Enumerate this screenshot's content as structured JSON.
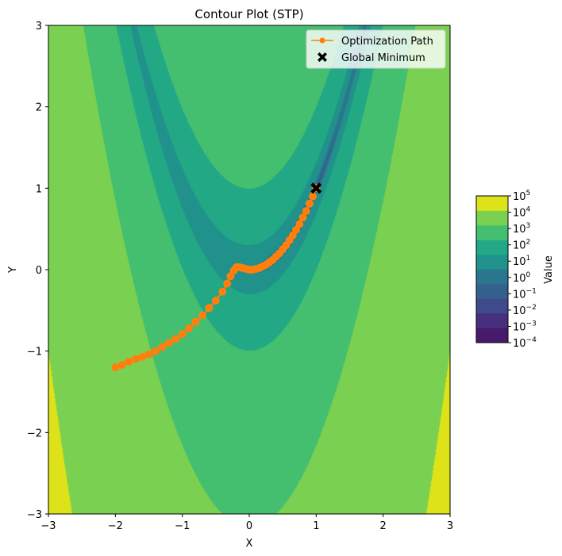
{
  "chart_data": {
    "type": "contour",
    "title": "Contour Plot (STP)",
    "xlabel": "X",
    "ylabel": "Y",
    "xlim": [
      -3,
      3
    ],
    "ylim": [
      -3,
      3
    ],
    "x_ticks": [
      -3,
      -2,
      -1,
      0,
      1,
      2,
      3
    ],
    "y_ticks": [
      -3,
      -2,
      -1,
      0,
      1,
      2,
      3
    ],
    "x_tick_labels": [
      "−3",
      "−2",
      "−1",
      "0",
      "1",
      "2",
      "3"
    ],
    "y_tick_labels": [
      "−3",
      "−2",
      "−1",
      "0",
      "1",
      "2",
      "3"
    ],
    "surface": "Rosenbrock",
    "scale": "log",
    "contour_levels": [
      0.0001,
      0.001,
      0.01,
      0.1,
      1,
      10,
      100,
      1000,
      10000,
      100000
    ],
    "level_colors": [
      "#481a6c",
      "#472f7d",
      "#3e4a89",
      "#35608d",
      "#2a768e",
      "#21918c",
      "#22a884",
      "#44bf70",
      "#7ad151",
      "#dde318"
    ],
    "colorbar": {
      "label": "Value",
      "tick_labels": [
        {
          "base": "10",
          "exp": "5"
        },
        {
          "base": "10",
          "exp": "4"
        },
        {
          "base": "10",
          "exp": "3"
        },
        {
          "base": "10",
          "exp": "2"
        },
        {
          "base": "10",
          "exp": "1"
        },
        {
          "base": "10",
          "exp": "0"
        },
        {
          "base": "10",
          "exp": "−1"
        },
        {
          "base": "10",
          "exp": "−2"
        },
        {
          "base": "10",
          "exp": "−3"
        },
        {
          "base": "10",
          "exp": "−4"
        }
      ]
    },
    "series": [
      {
        "name": "Optimization Path",
        "color": "#ff7f0e",
        "marker": "circle",
        "points": [
          [
            -2.0,
            -1.2
          ],
          [
            -1.9,
            -1.17
          ],
          [
            -1.8,
            -1.13
          ],
          [
            -1.7,
            -1.1
          ],
          [
            -1.6,
            -1.07
          ],
          [
            -1.5,
            -1.04
          ],
          [
            -1.4,
            -1.0
          ],
          [
            -1.3,
            -0.95
          ],
          [
            -1.2,
            -0.9
          ],
          [
            -1.1,
            -0.85
          ],
          [
            -1.0,
            -0.79
          ],
          [
            -0.9,
            -0.72
          ],
          [
            -0.8,
            -0.64
          ],
          [
            -0.7,
            -0.56
          ],
          [
            -0.6,
            -0.47
          ],
          [
            -0.5,
            -0.38
          ],
          [
            -0.4,
            -0.27
          ],
          [
            -0.33,
            -0.17
          ],
          [
            -0.28,
            -0.08
          ],
          [
            -0.23,
            -0.01
          ],
          [
            -0.19,
            0.03
          ],
          [
            -0.15,
            0.03
          ],
          [
            -0.1,
            0.02
          ],
          [
            -0.05,
            0.01
          ],
          [
            0.0,
            0.0
          ],
          [
            0.05,
            0.0
          ],
          [
            0.1,
            0.01
          ],
          [
            0.15,
            0.02
          ],
          [
            0.2,
            0.04
          ],
          [
            0.25,
            0.06
          ],
          [
            0.3,
            0.09
          ],
          [
            0.35,
            0.12
          ],
          [
            0.4,
            0.16
          ],
          [
            0.45,
            0.2
          ],
          [
            0.5,
            0.25
          ],
          [
            0.55,
            0.3
          ],
          [
            0.6,
            0.36
          ],
          [
            0.65,
            0.42
          ],
          [
            0.7,
            0.49
          ],
          [
            0.75,
            0.56
          ],
          [
            0.8,
            0.64
          ],
          [
            0.85,
            0.72
          ],
          [
            0.9,
            0.81
          ],
          [
            0.95,
            0.9
          ],
          [
            1.0,
            1.0
          ]
        ]
      },
      {
        "name": "Global Minimum",
        "color": "#000000",
        "marker": "X",
        "points": [
          [
            1.0,
            1.0
          ]
        ]
      }
    ],
    "legend_position": "top-right"
  }
}
